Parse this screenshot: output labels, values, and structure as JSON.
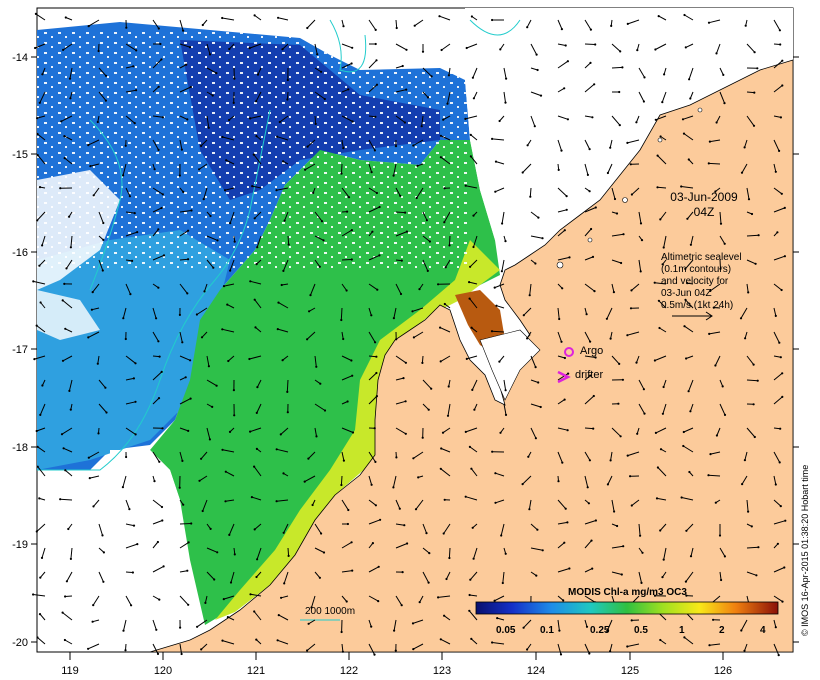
{
  "map": {
    "lon_ticks": [
      "119",
      "120",
      "121",
      "122",
      "123",
      "124",
      "125",
      "126"
    ],
    "lat_ticks": [
      "-14",
      "-15",
      "-16",
      "-17",
      "-18",
      "-19",
      "-20"
    ],
    "date_line1": "03-Jun-2009",
    "date_line2": "04Z",
    "altimetry_lines": [
      "Altimetric sealevel",
      "(0.1m contours)",
      "and velocity for",
      "03-Jun 04Z",
      "0.5m/s (1kt 24h)"
    ],
    "argo_label": "Argo",
    "drifter_label": "drifter",
    "depth_label": "200  1000m",
    "colorbar_title": "MODIS Chl-a mg/m3 OC3",
    "colorbar_ticks": [
      "0.05",
      "0.1",
      "0.25",
      "0.5",
      "1",
      "2",
      "4"
    ],
    "credit": "© IMOS 16-Apr-2015 01:38:20 Hobart time",
    "colors": {
      "land": "#fccb9b",
      "low_chl": "#1c4fc4",
      "mid_chl": "#18c058",
      "high_chl": "#b83a00",
      "contour": "#22cccc",
      "argo_marker": "#dd22dd"
    }
  }
}
